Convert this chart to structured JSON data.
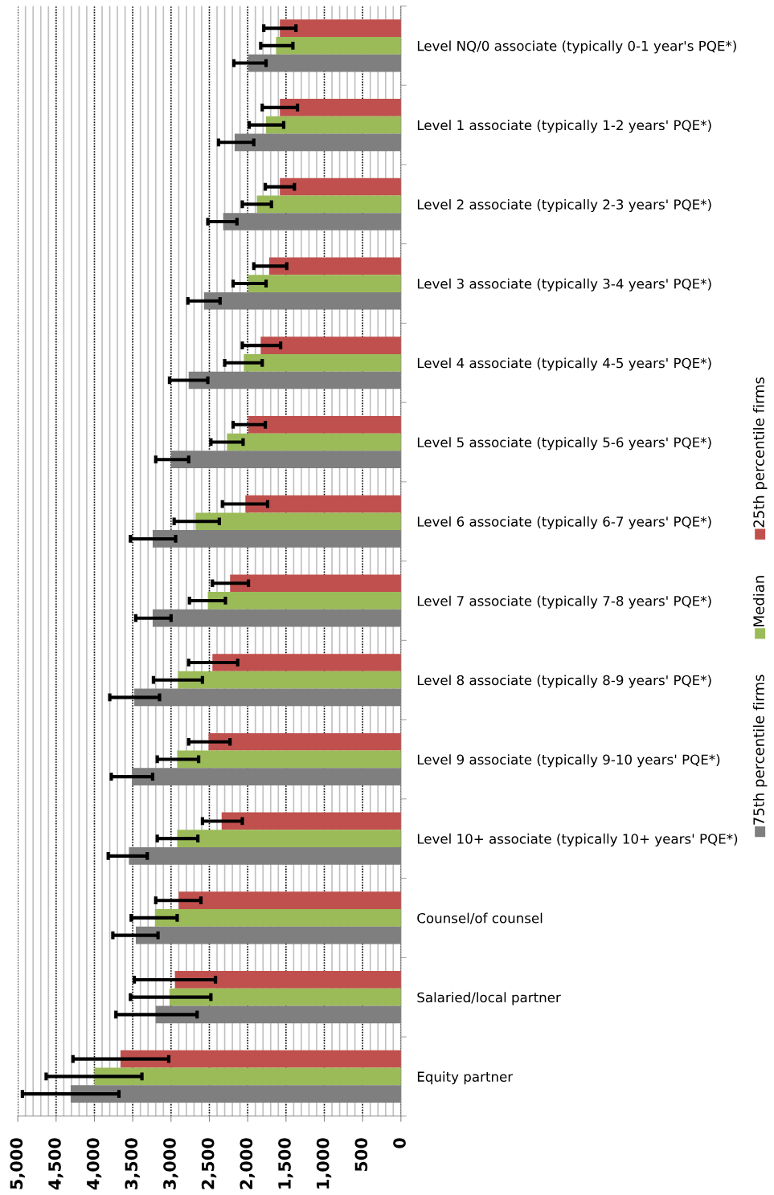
{
  "chart_data": {
    "type": "bar",
    "orientation": "horizontal",
    "categories": [
      "Level NQ/0 associate (typically 0-1 year's PQE*)",
      "Level 1 associate (typically 1-2 years' PQE*)",
      "Level 2 associate (typically 2-3 years' PQE*)",
      "Level 3 associate (typically 3-4 years' PQE*)",
      "Level 4 associate (typically 4-5 years' PQE*)",
      "Level 5 associate (typically 5-6 years' PQE*)",
      "Level 6 associate (typically 6-7 years' PQE*)",
      "Level 7 associate (typically 7-8 years' PQE*)",
      "Level 8 associate (typically 8-9 years' PQE*)",
      "Level 9 associate (typically 9-10 years' PQE*)",
      "Level 10+ associate (typically 10+ years' PQE*)",
      "Counsel/of counsel",
      "Salaried/local partner",
      "Equity partner"
    ],
    "series": [
      {
        "name": "25th percentile firms",
        "color": "#c0504d",
        "values": [
          1580,
          1580,
          1580,
          1720,
          1830,
          1990,
          2030,
          2230,
          2460,
          2510,
          2340,
          2900,
          2950,
          3660
        ],
        "errors": [
          [
            1370,
            1790
          ],
          [
            1350,
            1810
          ],
          [
            1390,
            1770
          ],
          [
            1490,
            1920
          ],
          [
            1570,
            2070
          ],
          [
            1770,
            2190
          ],
          [
            1740,
            2330
          ],
          [
            1990,
            2460
          ],
          [
            2130,
            2770
          ],
          [
            2230,
            2770
          ],
          [
            2070,
            2590
          ],
          [
            2610,
            3200
          ],
          [
            2420,
            3480
          ],
          [
            3030,
            4280
          ]
        ]
      },
      {
        "name": "Median",
        "color": "#9bbb59",
        "values": [
          1630,
          1760,
          1880,
          1990,
          2050,
          2270,
          2680,
          2520,
          2910,
          2920,
          2920,
          3210,
          3020,
          4000
        ],
        "errors": [
          [
            1410,
            1830
          ],
          [
            1530,
            1980
          ],
          [
            1690,
            2070
          ],
          [
            1760,
            2190
          ],
          [
            1810,
            2300
          ],
          [
            2060,
            2480
          ],
          [
            2370,
            2960
          ],
          [
            2290,
            2760
          ],
          [
            2590,
            3230
          ],
          [
            2640,
            3180
          ],
          [
            2650,
            3180
          ],
          [
            2920,
            3520
          ],
          [
            2480,
            3530
          ],
          [
            3380,
            4630
          ]
        ]
      },
      {
        "name": "75th percentile firms",
        "color": "#7f7f7f",
        "values": [
          1990,
          2170,
          2320,
          2570,
          2770,
          3000,
          3240,
          3240,
          3480,
          3510,
          3550,
          3460,
          3200,
          4310
        ],
        "errors": [
          [
            1760,
            2180
          ],
          [
            1920,
            2380
          ],
          [
            2140,
            2520
          ],
          [
            2360,
            2780
          ],
          [
            2520,
            3020
          ],
          [
            2770,
            3200
          ],
          [
            2940,
            3530
          ],
          [
            3000,
            3460
          ],
          [
            3150,
            3800
          ],
          [
            3240,
            3780
          ],
          [
            3310,
            3820
          ],
          [
            3170,
            3760
          ],
          [
            2660,
            3720
          ],
          [
            3680,
            4940
          ]
        ]
      }
    ],
    "xlim": [
      5000,
      0
    ],
    "xticks": [
      {
        "value": 5000,
        "label": "5,000"
      },
      {
        "value": 4500,
        "label": "4,500"
      },
      {
        "value": 4000,
        "label": "4,000"
      },
      {
        "value": 3500,
        "label": "3,500"
      },
      {
        "value": 3000,
        "label": "3,000"
      },
      {
        "value": 2500,
        "label": "2,500"
      },
      {
        "value": 2000,
        "label": "2,000"
      },
      {
        "value": 1500,
        "label": "1,500"
      },
      {
        "value": 1000,
        "label": "1,000"
      },
      {
        "value": 500,
        "label": "500"
      },
      0
    ],
    "grid": "x",
    "legend": "right"
  }
}
